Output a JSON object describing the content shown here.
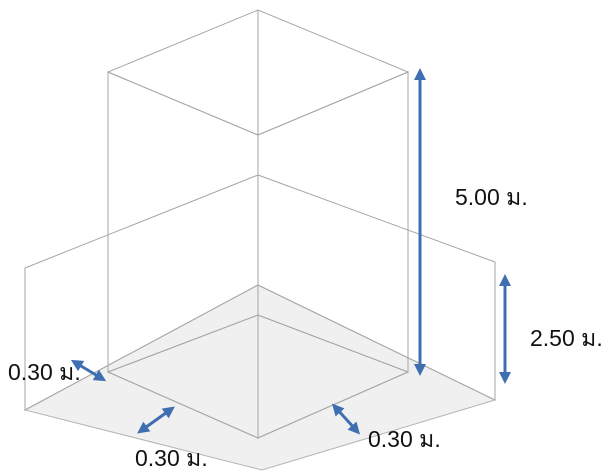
{
  "labels": {
    "height_main": "5.00 ม.",
    "height_wall": "2.50 ม.",
    "thickness_left": "0.30 ม.",
    "thickness_front": "0.30 ม.",
    "thickness_right": "0.30 ม."
  },
  "colors": {
    "arrow": "#3f6fb0",
    "edge": "#a6a6a6",
    "block_face": "#bdbdbd",
    "wall_face": "#e4e4e4",
    "top_face": "#cfcfcf",
    "floor": "#f0f0f0"
  }
}
